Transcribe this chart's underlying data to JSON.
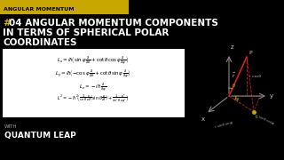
{
  "bg_color": "#000000",
  "header_bg": "#C8A800",
  "header_text": "ANGULAR MOMENTUM",
  "header_color": "#000000",
  "title_color": "#ffffff",
  "hash_color": "#C8A800",
  "with_text": "WITH",
  "brand_text": "QUANTUM LEAP",
  "eq_color": "#000000",
  "eq_bg": "#ffffff",
  "diagram_axis_color": "#888888",
  "diagram_red": "#cc2222",
  "diagram_text_color": "#aaaaaa",
  "diagram_gold": "#C8A800"
}
